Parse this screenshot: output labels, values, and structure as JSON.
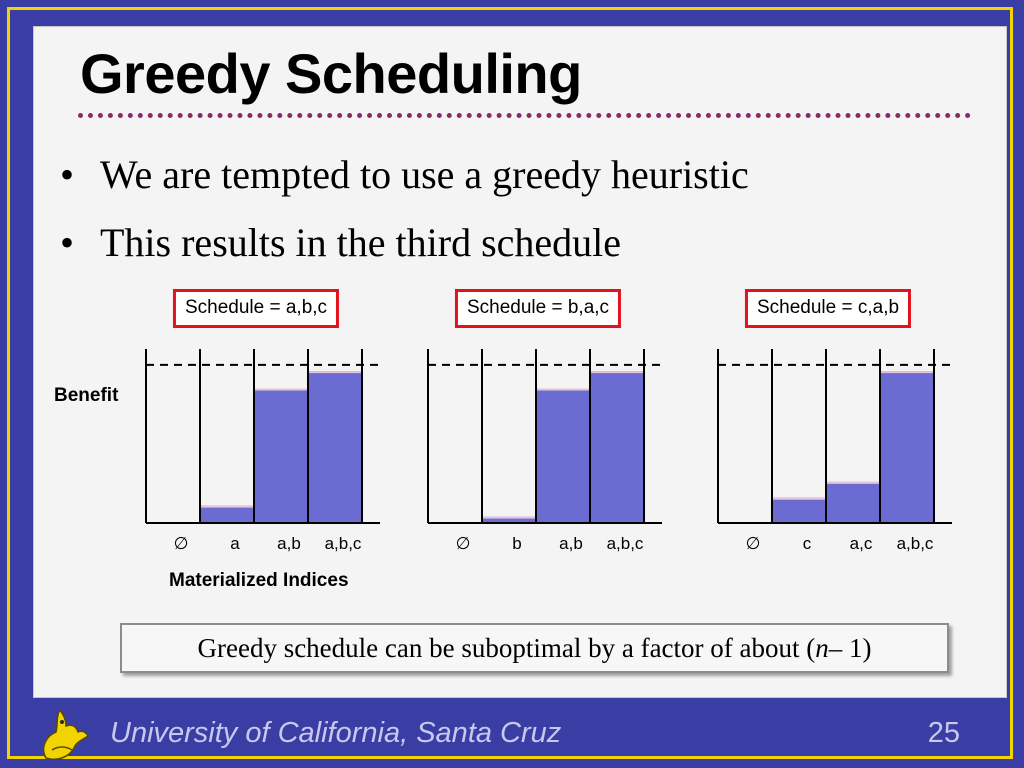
{
  "title": "Greedy Scheduling",
  "bullets": [
    "We are tempted to use a greedy heuristic",
    "This results in the third schedule"
  ],
  "benefit_label": "Benefit",
  "indices_label": "Materialized Indices",
  "callout": {
    "prefix": "Greedy schedule can be suboptimal by a factor of about (",
    "variable": "n",
    "suffix": " – 1)"
  },
  "footer": {
    "university": "University of California, Santa Cruz",
    "page": "25"
  },
  "colors": {
    "background": "#3a3ea4",
    "frame": "#f2d400",
    "bar": "#6a6cd2",
    "bar_top": "#e6c3d8",
    "highlight_box": "#e0141c",
    "dotted_rule": "#8a2a6a"
  },
  "logo_icon": "banana-slug-icon",
  "chart_data": [
    {
      "type": "bar",
      "title": "Schedule = a,b,c",
      "categories": [
        "∅",
        "a",
        "a,b",
        "a,b,c"
      ],
      "values": [
        0,
        0.11,
        0.85,
        0.96
      ],
      "max_line": 1.0,
      "ylabel": "Benefit",
      "xlabel": "Materialized Indices",
      "ylim": [
        0,
        1.1
      ]
    },
    {
      "type": "bar",
      "title": "Schedule = b,a,c",
      "categories": [
        "∅",
        "b",
        "a,b",
        "a,b,c"
      ],
      "values": [
        0,
        0.04,
        0.85,
        0.96
      ],
      "max_line": 1.0,
      "ylabel": "Benefit",
      "xlabel": "Materialized Indices",
      "ylim": [
        0,
        1.1
      ]
    },
    {
      "type": "bar",
      "title": "Schedule = c,a,b",
      "categories": [
        "∅",
        "c",
        "a,c",
        "a,b,c"
      ],
      "values": [
        0,
        0.16,
        0.26,
        0.96
      ],
      "max_line": 1.0,
      "ylabel": "Benefit",
      "xlabel": "Materialized Indices",
      "ylim": [
        0,
        1.1
      ]
    }
  ]
}
